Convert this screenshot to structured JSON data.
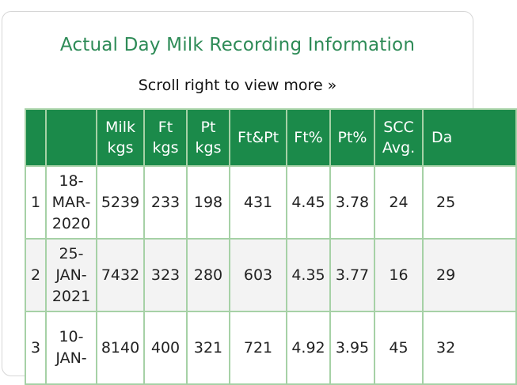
{
  "page": {
    "title": "Actual Day Milk Recording Information",
    "hint": "Scroll right to view more »"
  },
  "table": {
    "headers": [
      "",
      "",
      "Milk kgs",
      "Ft kgs",
      "Pt kgs",
      "Ft&Pt",
      "Ft%",
      "Pt%",
      "SCC Avg.",
      "Da"
    ],
    "header_lines": [
      [
        "",
        ""
      ],
      [
        "",
        ""
      ],
      [
        "Milk",
        "kgs"
      ],
      [
        "Ft",
        "kgs"
      ],
      [
        "Pt",
        "kgs"
      ],
      [
        "Ft&Pt",
        ""
      ],
      [
        "Ft%",
        ""
      ],
      [
        "Pt%",
        ""
      ],
      [
        "SCC",
        "Avg."
      ],
      [
        "Da",
        ""
      ]
    ],
    "rows": [
      {
        "n": "1",
        "date": [
          "18-",
          "MAR-",
          "2020"
        ],
        "milk": "5239",
        "ft": "233",
        "pt": "198",
        "ftpt": "431",
        "ftpct": "4.45",
        "ptpct": "3.78",
        "scc": "24",
        "da": "25"
      },
      {
        "n": "2",
        "date": [
          "25-",
          "JAN-",
          "2021"
        ],
        "milk": "7432",
        "ft": "323",
        "pt": "280",
        "ftpt": "603",
        "ftpct": "4.35",
        "ptpct": "3.77",
        "scc": "16",
        "da": "29"
      },
      {
        "n": "3",
        "date": [
          "10-",
          "JAN-",
          ""
        ],
        "milk": "8140",
        "ft": "400",
        "pt": "321",
        "ftpt": "721",
        "ftpct": "4.92",
        "ptpct": "3.95",
        "scc": "45",
        "da": "32"
      }
    ]
  },
  "colors": {
    "header_bg": "#1b8a4a",
    "title": "#2e8b57",
    "border": "#a6d1a6"
  }
}
